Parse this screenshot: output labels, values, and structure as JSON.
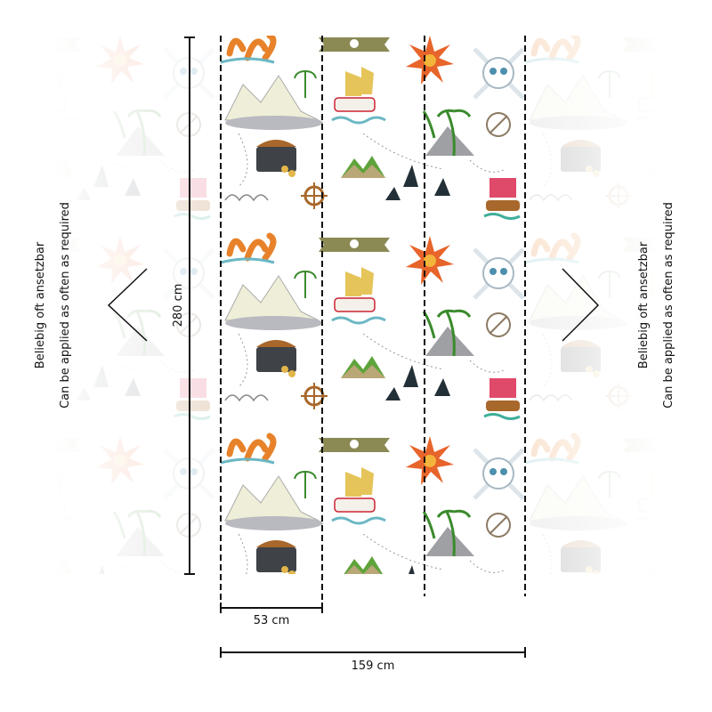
{
  "dimensions": {
    "height": "280 cm",
    "panel_width": "53 cm",
    "total_width": "159 cm"
  },
  "note": {
    "line_1": "Beliebig oft ansetzbar",
    "line_2": "Can be applied as often as required"
  }
}
